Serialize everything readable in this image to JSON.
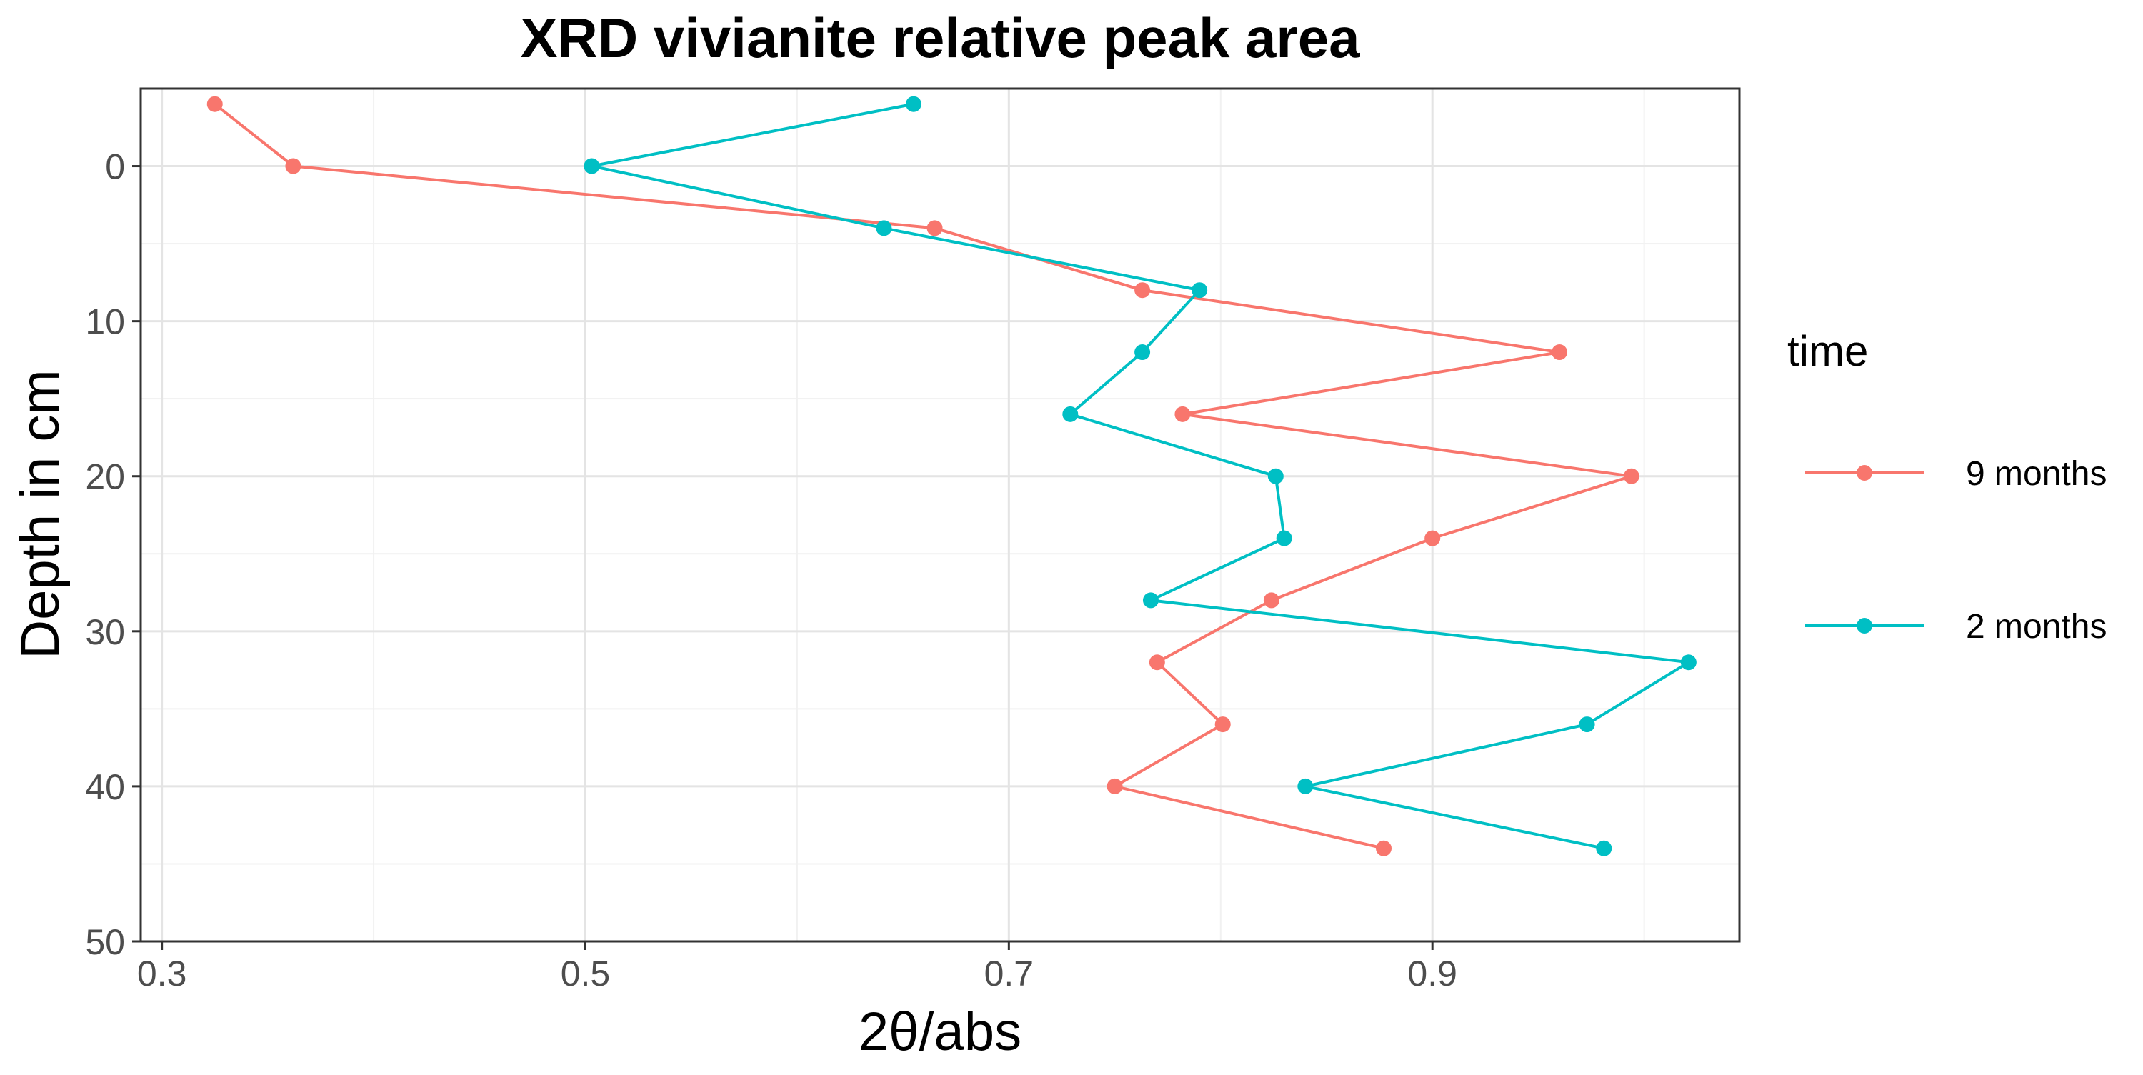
{
  "chart_data": {
    "type": "line",
    "title": "XRD vivianite relative peak area",
    "xlabel": "2θ/abs",
    "ylabel": "Depth in cm",
    "xlim": [
      0.29,
      1.045
    ],
    "ylim": [
      -5,
      50
    ],
    "y_reversed": true,
    "x_ticks": [
      "0.3",
      "0.5",
      "0.7",
      "0.9"
    ],
    "x_tick_values": [
      0.3,
      0.5,
      0.7,
      0.9
    ],
    "y_ticks": [
      "0",
      "10",
      "20",
      "30",
      "40",
      "50"
    ],
    "y_tick_values": [
      0,
      10,
      20,
      30,
      40,
      50
    ],
    "grid": true,
    "legend": {
      "title": "time",
      "position": "right"
    },
    "series": [
      {
        "name": "9 months",
        "color": "#F8766D",
        "points": [
          {
            "x": 0.325,
            "y": -4
          },
          {
            "x": 0.362,
            "y": 0
          },
          {
            "x": 0.665,
            "y": 4
          },
          {
            "x": 0.763,
            "y": 8
          },
          {
            "x": 0.96,
            "y": 12
          },
          {
            "x": 0.782,
            "y": 16
          },
          {
            "x": 0.994,
            "y": 20
          },
          {
            "x": 0.9,
            "y": 24
          },
          {
            "x": 0.824,
            "y": 28
          },
          {
            "x": 0.77,
            "y": 32
          },
          {
            "x": 0.801,
            "y": 36
          },
          {
            "x": 0.75,
            "y": 40
          },
          {
            "x": 0.877,
            "y": 44
          }
        ]
      },
      {
        "name": "2 months",
        "color": "#00BFC4",
        "points": [
          {
            "x": 0.655,
            "y": -4
          },
          {
            "x": 0.503,
            "y": 0
          },
          {
            "x": 0.641,
            "y": 4
          },
          {
            "x": 0.79,
            "y": 8
          },
          {
            "x": 0.763,
            "y": 12
          },
          {
            "x": 0.729,
            "y": 16
          },
          {
            "x": 0.826,
            "y": 20
          },
          {
            "x": 0.83,
            "y": 24
          },
          {
            "x": 0.767,
            "y": 28
          },
          {
            "x": 1.021,
            "y": 32
          },
          {
            "x": 0.973,
            "y": 36
          },
          {
            "x": 0.84,
            "y": 40
          },
          {
            "x": 0.981,
            "y": 44
          }
        ]
      }
    ]
  }
}
